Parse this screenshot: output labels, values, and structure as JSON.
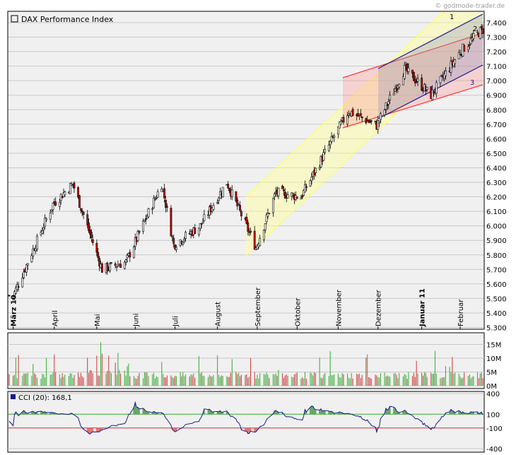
{
  "watermark": "© godmode-trader.de",
  "main_panel": {
    "title": "DAX Performance Index",
    "y_ticks": [
      "5.300",
      "5.400",
      "5.500",
      "5.600",
      "5.700",
      "5.800",
      "5.900",
      "6.000",
      "6.100",
      "6.200",
      "6.300",
      "6.400",
      "6.500",
      "6.600",
      "6.700",
      "6.800",
      "6.900",
      "7.000",
      "7.100",
      "7.200",
      "7.300",
      "7.400"
    ],
    "month_labels": [
      {
        "label": "März 10",
        "bold": true
      },
      {
        "label": "April",
        "bold": false
      },
      {
        "label": "Mai",
        "bold": false
      },
      {
        "label": "Juni",
        "bold": false
      },
      {
        "label": "Juli",
        "bold": false
      },
      {
        "label": "August",
        "bold": false
      },
      {
        "label": "September",
        "bold": false
      },
      {
        "label": "Oktober",
        "bold": false
      },
      {
        "label": "November",
        "bold": false
      },
      {
        "label": "Dezember",
        "bold": false
      },
      {
        "label": "Januar 11",
        "bold": true
      },
      {
        "label": "Februar",
        "bold": false
      }
    ],
    "channel_labels": [
      "1",
      "2",
      "3"
    ],
    "colors": {
      "up": "#ffffff",
      "down": "#cc0000",
      "channel1": "#ffff66",
      "channel2": "#1a1a8c",
      "channel3": "#ff3333",
      "grid": "#c8c8c8",
      "bg": "#f0f0f0"
    }
  },
  "volume_panel": {
    "y_ticks": [
      "0M",
      "5M",
      "10M",
      "15M"
    ],
    "colors": {
      "up": "#33aa33",
      "down": "#cc3333"
    }
  },
  "cci_panel": {
    "title": "CCI (20): 168,1",
    "y_ticks": [
      "400",
      "100",
      "-100",
      "-400"
    ],
    "colors": {
      "line": "#1a1a8c",
      "above": "#4d9a4d",
      "below": "#e06060",
      "plus_line": "#33aa33",
      "minus_line": "#cc3333"
    }
  },
  "chart_data": {
    "type": "candlestick",
    "title": "DAX Performance Index",
    "x_range": [
      "2010-02-26",
      "2011-02-18"
    ],
    "ylim": [
      5300,
      7450
    ],
    "key_points": [
      {
        "date": "2010-03-01",
        "close": 5520
      },
      {
        "date": "2010-03-31",
        "close": 6150
      },
      {
        "date": "2010-04-15",
        "close": 6290
      },
      {
        "date": "2010-05-07",
        "close": 5700
      },
      {
        "date": "2010-05-25",
        "close": 5750
      },
      {
        "date": "2010-06-21",
        "close": 6290
      },
      {
        "date": "2010-06-30",
        "close": 5870
      },
      {
        "date": "2010-07-20",
        "close": 6000
      },
      {
        "date": "2010-08-09",
        "close": 6300
      },
      {
        "date": "2010-08-31",
        "close": 5850
      },
      {
        "date": "2010-09-15",
        "close": 6230
      },
      {
        "date": "2010-10-04",
        "close": 6200
      },
      {
        "date": "2010-10-29",
        "close": 6620
      },
      {
        "date": "2010-11-09",
        "close": 6790
      },
      {
        "date": "2010-11-30",
        "close": 6690
      },
      {
        "date": "2010-12-21",
        "close": 7080
      },
      {
        "date": "2011-01-10",
        "close": 6900
      },
      {
        "date": "2011-02-01",
        "close": 7200
      },
      {
        "date": "2011-02-17",
        "close": 7350
      }
    ],
    "volume_ylim": [
      0,
      16
    ],
    "cci_ylim": [
      -430,
      460
    ],
    "cci_last": 168.1
  }
}
